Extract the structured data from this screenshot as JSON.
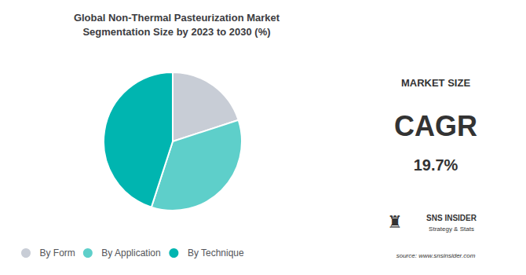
{
  "chart_data": {
    "type": "pie",
    "title": "Global Non-Thermal Pasteurization Market\nSegmentation Size by 2023 to 2030 (%)",
    "categories": [
      "By Form",
      "By Application",
      "By Technique"
    ],
    "values": [
      20,
      35,
      45
    ],
    "colors": [
      "#c8cdd6",
      "#5ecfca",
      "#00b5b0"
    ],
    "legend": "bottom",
    "data_labels": false,
    "annotations": [
      "MARKET SIZE",
      "CAGR",
      "19.7%",
      "♜",
      "SNS INSIDER",
      "Strategy & Stats",
      "source: www.snsinsider.com"
    ]
  }
}
